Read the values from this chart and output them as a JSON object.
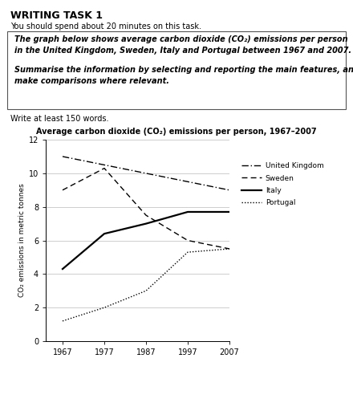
{
  "title_main": "WRITING TASK 1",
  "subtitle1": "You should spend about 20 minutes on this task.",
  "box_text1": "The graph below shows average carbon dioxide (CO₂) emissions per person\nin the United Kingdom, Sweden, Italy and Portugal between 1967 and 2007.",
  "box_text2": "Summarise the information by selecting and reporting the main features, and\nmake comparisons where relevant.",
  "write_note": "Write at least 150 words.",
  "chart_title": "Average carbon dioxide (CO₂) emissions per person, 1967–2007",
  "ylabel": "CO₂ emissions in metric tonnes",
  "years": [
    1967,
    1977,
    1987,
    1997,
    2007
  ],
  "uk": [
    11.0,
    10.5,
    10.0,
    9.5,
    9.0
  ],
  "sweden": [
    9.0,
    10.3,
    7.5,
    6.0,
    5.5
  ],
  "italy": [
    4.3,
    6.4,
    7.0,
    7.7,
    7.7
  ],
  "portugal": [
    1.2,
    2.0,
    3.0,
    5.3,
    5.5
  ],
  "ylim": [
    0,
    12
  ],
  "yticks": [
    0,
    2,
    4,
    6,
    8,
    10,
    12
  ],
  "xticks": [
    1967,
    1977,
    1987,
    1997,
    2007
  ],
  "legend_labels": [
    "United Kingdom",
    "Sweden",
    "Italy",
    "Portugal"
  ],
  "bg_color": "#ffffff",
  "text_title_fontsize": 9,
  "text_body_fontsize": 7,
  "chart_title_fontsize": 7,
  "axis_fontsize": 7,
  "legend_fontsize": 6.5,
  "ylabel_fontsize": 6.5
}
